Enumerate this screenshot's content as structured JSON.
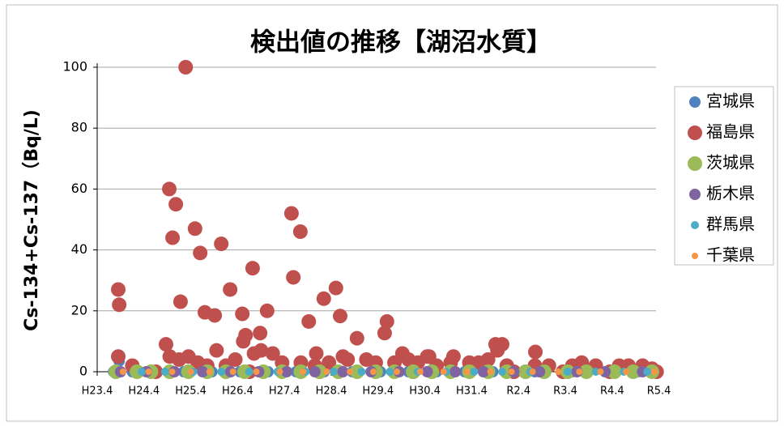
{
  "chart_data": {
    "type": "scatter",
    "title": "検出値の推移【湖沼水質】",
    "y_label": "Cs-134+Cs-137（Bq/L)",
    "xlim": [
      2011.25,
      2023.2
    ],
    "ylim": [
      0,
      100
    ],
    "yticks": [
      0,
      20,
      40,
      60,
      80,
      100
    ],
    "grid": true,
    "legend": "right",
    "xticks": [
      {
        "value": 2011.25,
        "label": "H23.4"
      },
      {
        "value": 2012.25,
        "label": "H24.4"
      },
      {
        "value": 2013.25,
        "label": "H25.4"
      },
      {
        "value": 2014.25,
        "label": "H26.4"
      },
      {
        "value": 2015.25,
        "label": "H27.4"
      },
      {
        "value": 2016.25,
        "label": "H28.4"
      },
      {
        "value": 2017.25,
        "label": "H29.4"
      },
      {
        "value": 2018.25,
        "label": "H30.4"
      },
      {
        "value": 2019.25,
        "label": "H31.4"
      },
      {
        "value": 2020.25,
        "label": "R2.4"
      },
      {
        "value": 2021.25,
        "label": "R3.4"
      },
      {
        "value": 2022.25,
        "label": "R4.4"
      },
      {
        "value": 2023.25,
        "label": "R5.4"
      }
    ],
    "series": [
      {
        "name": "宮城県",
        "color": "#4f81bd",
        "x": [
          2011.72,
          2011.6,
          2012.0,
          2012.5,
          2013.1,
          2013.7,
          2014.3,
          2014.9,
          2015.5,
          2016.1,
          2016.7,
          2017.3,
          2017.9,
          2018.5,
          2019.1,
          2019.7,
          2020.6,
          2021.4,
          2022.2,
          2022.8
        ],
        "values": [
          3.5,
          0,
          0,
          0,
          0,
          0,
          0,
          0,
          0,
          0,
          0,
          0,
          0,
          0,
          0,
          0,
          0,
          0,
          0,
          0
        ]
      },
      {
        "name": "福島県",
        "color": "#c0504d",
        "x": [
          2011.7,
          2011.72,
          2011.7,
          2013.14,
          2012.79,
          2012.93,
          2012.86,
          2013.03,
          2013.34,
          2013.45,
          2013.55,
          2013.76,
          2013.9,
          2014.09,
          2014.35,
          2014.42,
          2014.37,
          2014.57,
          2014.73,
          2014.88,
          2014.75,
          2015.4,
          2015.44,
          2015.59,
          2015.77,
          2015.93,
          2016.09,
          2016.35,
          2016.44,
          2016.8,
          2017.39,
          2017.44,
          2017.77,
          2018.34,
          2018.86,
          2019.76,
          2019.9,
          2020.61,
          2012.72,
          2012.8,
          2013.0,
          2013.2,
          2013.4,
          2013.6,
          2013.8,
          2014.0,
          2014.2,
          2014.6,
          2015.0,
          2015.2,
          2015.6,
          2015.9,
          2016.2,
          2016.5,
          2016.6,
          2017.0,
          2017.2,
          2017.6,
          2017.9,
          2018.1,
          2018.3,
          2018.5,
          2018.8,
          2019.2,
          2019.4,
          2019.6,
          2019.8,
          2020.0,
          2020.6,
          2020.9,
          2021.4,
          2021.6,
          2021.9,
          2022.4,
          2022.6,
          2022.9,
          2023.1,
          2012.0,
          2012.5,
          2014.5,
          2016.0,
          2018.0,
          2020.15,
          2021.2,
          2022.2,
          2023.2
        ],
        "values": [
          27,
          22,
          5,
          100,
          60,
          55,
          44,
          23,
          47,
          39,
          19.5,
          18.5,
          42,
          27,
          19,
          12,
          10,
          34,
          12.7,
          20,
          7,
          52,
          31,
          46,
          16.5,
          6,
          24,
          27.5,
          18.3,
          11,
          12.7,
          16.5,
          6,
          5,
          5,
          9,
          9,
          6.5,
          9,
          5,
          4,
          5,
          3,
          2,
          7,
          2,
          4,
          6,
          6,
          3,
          3,
          2,
          3,
          5,
          4,
          4,
          3,
          3,
          4,
          3,
          5,
          2,
          3,
          3,
          3,
          4,
          7,
          2,
          2,
          2,
          2,
          3,
          2,
          2,
          2,
          2,
          1,
          2,
          0,
          0,
          0,
          0,
          0,
          0,
          0,
          0
        ]
      },
      {
        "name": "茨城県",
        "color": "#9bbb59",
        "x": [
          2011.65,
          2012.1,
          2012.4,
          2012.8,
          2013.2,
          2013.6,
          2014.0,
          2014.4,
          2014.8,
          2015.2,
          2015.6,
          2016.0,
          2016.4,
          2016.8,
          2017.2,
          2017.6,
          2018.0,
          2018.4,
          2018.8,
          2019.2,
          2019.6,
          2020.0,
          2020.4,
          2020.8,
          2021.3,
          2021.7,
          2022.3,
          2022.7,
          2023.1
        ],
        "values": [
          0,
          0,
          0,
          0,
          0,
          0,
          0,
          0,
          0,
          0,
          0,
          0,
          0,
          0,
          0,
          0,
          0,
          0,
          0,
          0,
          0,
          0,
          0,
          0,
          0,
          0,
          0,
          0,
          0
        ]
      },
      {
        "name": "栃木県",
        "color": "#8064a2",
        "x": [
          2011.75,
          2012.3,
          2012.9,
          2013.5,
          2014.1,
          2014.7,
          2015.3,
          2015.9,
          2016.5,
          2017.1,
          2017.7,
          2018.3,
          2018.9,
          2019.5,
          2020.15,
          2020.7,
          2021.5,
          2022.1,
          2022.9
        ],
        "values": [
          0,
          0,
          0,
          0,
          0,
          0,
          0,
          0,
          0,
          0,
          0,
          0,
          0,
          0,
          0,
          0,
          0,
          0,
          0
        ]
      },
      {
        "name": "群馬県",
        "color": "#4bacc6",
        "x": [
          2012.2,
          2012.7,
          2013.3,
          2013.9,
          2014.5,
          2015.1,
          2015.7,
          2016.3,
          2016.9,
          2017.5,
          2018.1,
          2018.7,
          2019.3,
          2019.9,
          2020.5,
          2021.3,
          2021.9,
          2022.5,
          2023.0
        ],
        "values": [
          0,
          0,
          0,
          0,
          0,
          0,
          0,
          0,
          0,
          0,
          0,
          0,
          0,
          0,
          0,
          0,
          0,
          0,
          0
        ]
      },
      {
        "name": "千葉県",
        "color": "#f79646",
        "x": [
          2011.8,
          2012.35,
          2012.85,
          2013.25,
          2013.65,
          2014.15,
          2014.65,
          2015.15,
          2015.65,
          2016.15,
          2016.65,
          2017.15,
          2017.65,
          2018.15,
          2018.65,
          2019.15,
          2019.65,
          2020.1,
          2020.55,
          2021.1,
          2021.55,
          2022.0,
          2022.55,
          2023.15
        ],
        "values": [
          0,
          0,
          0,
          0,
          0,
          0,
          0,
          0,
          0,
          0,
          0,
          0,
          0,
          0,
          0,
          0,
          0,
          0,
          0,
          0,
          0,
          0,
          0,
          0
        ]
      }
    ]
  }
}
